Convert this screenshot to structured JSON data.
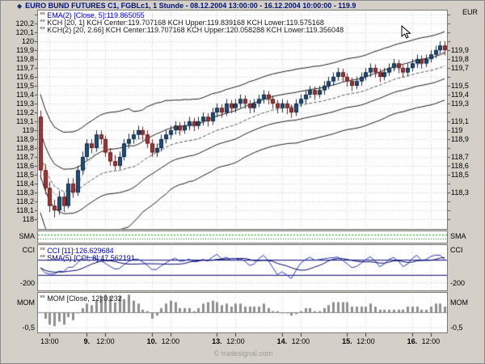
{
  "header": {
    "icon": "◆",
    "title": "EURO BUND FUTURES C1, FGBLc1, 1 Stunde - 08.12.2004 13:00:00 - 16.12.2004 10:00:00 - 119.9",
    "unit": "EUR"
  },
  "price_pane": {
    "legends": [
      {
        "icon": "××",
        "text": "EMA(2) [Close, 5]:119.865055"
      },
      {
        "icon": "××",
        "text": "KCH [20, 1] KCH Center:119.707168 KCH Upper:119.839168 KCH Lower:119.575168"
      },
      {
        "icon": "××",
        "text": "KCH(2) [20, 2.66] KCH Center:119.707168 KCH Upper:120.058288 KCH Lower:119.356048"
      }
    ],
    "axis_left": [
      "120,2",
      "120,1",
      "120",
      "119,9",
      "119,8",
      "119,7",
      "119,6",
      "119,5",
      "119,4",
      "119,3",
      "119,2",
      "119,1",
      "119",
      "118,9",
      "118,8",
      "118,7",
      "118,6",
      "118,5",
      "118,4",
      "118,3",
      "118,2",
      "118,1",
      "118"
    ],
    "axis_right": [
      "119,9",
      "119,8",
      "119,7",
      "119,5",
      "119,4",
      "119,3",
      "119,1",
      "119",
      "118,9",
      "118,7",
      "118,6",
      "118,5",
      "118,3"
    ]
  },
  "sma_pane": {
    "label": "SMA"
  },
  "cci_pane": {
    "label": "CCI",
    "legends": [
      {
        "icon": "××",
        "text": "CCI [11]:126.629684"
      },
      {
        "icon": "××",
        "text": "SMA(5) [CCI, 8]:47.562191"
      }
    ],
    "axis_label": "-200"
  },
  "mom_pane": {
    "label": "MOM",
    "legends": [
      {
        "icon": "××",
        "text": "MOM [Close, 12]:0.232"
      }
    ],
    "axis_label": "-0,5"
  },
  "time_axis": {
    "ticks": [
      {
        "label": "13:00",
        "bar": 2,
        "bold": false
      },
      {
        "label": "9.",
        "bar": 10,
        "bold": true
      },
      {
        "label": "12:00",
        "bar": 14,
        "bold": false
      },
      {
        "label": "10.",
        "bar": 24,
        "bold": true
      },
      {
        "label": "12:00",
        "bar": 28,
        "bold": false
      },
      {
        "label": "13.",
        "bar": 38,
        "bold": true
      },
      {
        "label": "12:00",
        "bar": 42,
        "bold": false
      },
      {
        "label": "14.",
        "bar": 52,
        "bold": true
      },
      {
        "label": "12:00",
        "bar": 56,
        "bold": false
      },
      {
        "label": "15.",
        "bar": 66,
        "bold": true
      },
      {
        "label": "12:00",
        "bar": 70,
        "bold": false
      },
      {
        "label": "16.",
        "bar": 80,
        "bold": true
      },
      {
        "label": "12:00",
        "bar": 84,
        "bold": false
      }
    ]
  },
  "footer": {
    "copyright": "© tradesignal.com"
  },
  "chart_data": {
    "type": "candlestick",
    "title": "EURO BUND FUTURES C1, FGBLc1, 1 Stunde",
    "date_range": "08.12.2004 13:00:00 - 16.12.2004 10:00:00",
    "interval": "1 Stunde",
    "last_price": 119.9,
    "unit": "EUR",
    "y_axis": {
      "min": 118.0,
      "max": 120.2,
      "step": 0.1
    },
    "candles": [
      [
        119.15,
        119.22,
        118.45,
        118.55
      ],
      [
        118.55,
        118.62,
        118.28,
        118.35
      ],
      [
        118.35,
        118.42,
        118.08,
        118.15
      ],
      [
        118.15,
        118.22,
        118.02,
        118.1
      ],
      [
        118.1,
        118.32,
        118.05,
        118.25
      ],
      [
        118.25,
        118.3,
        118.08,
        118.15
      ],
      [
        118.15,
        118.46,
        118.12,
        118.4
      ],
      [
        118.4,
        118.46,
        118.24,
        118.3
      ],
      [
        118.3,
        118.6,
        118.26,
        118.55
      ],
      [
        118.55,
        118.76,
        118.5,
        118.7
      ],
      [
        118.7,
        118.9,
        118.66,
        118.85
      ],
      [
        118.85,
        118.9,
        118.74,
        118.8
      ],
      [
        118.8,
        119.0,
        118.76,
        118.95
      ],
      [
        118.95,
        119.0,
        118.84,
        118.9
      ],
      [
        118.9,
        118.94,
        118.7,
        118.75
      ],
      [
        118.75,
        118.8,
        118.6,
        118.65
      ],
      [
        118.65,
        118.72,
        118.55,
        118.6
      ],
      [
        118.6,
        118.76,
        118.56,
        118.7
      ],
      [
        118.7,
        118.9,
        118.66,
        118.85
      ],
      [
        118.85,
        118.96,
        118.8,
        118.9
      ],
      [
        118.9,
        119.0,
        118.85,
        118.95
      ],
      [
        118.95,
        119.05,
        118.9,
        119.0
      ],
      [
        119.0,
        119.04,
        118.88,
        118.95
      ],
      [
        118.95,
        119.0,
        118.8,
        118.85
      ],
      [
        118.85,
        118.9,
        118.7,
        118.75
      ],
      [
        118.75,
        118.85,
        118.7,
        118.8
      ],
      [
        118.8,
        118.95,
        118.76,
        118.9
      ],
      [
        118.9,
        119.0,
        118.85,
        118.95
      ],
      [
        118.95,
        119.05,
        118.9,
        119.0
      ],
      [
        119.0,
        119.1,
        118.95,
        119.05
      ],
      [
        119.05,
        119.09,
        118.94,
        119.0
      ],
      [
        119.0,
        119.1,
        118.96,
        119.05
      ],
      [
        119.05,
        119.15,
        119.0,
        119.1
      ],
      [
        119.1,
        119.14,
        118.99,
        119.05
      ],
      [
        119.05,
        119.15,
        119.01,
        119.1
      ],
      [
        119.1,
        119.2,
        119.05,
        119.15
      ],
      [
        119.15,
        119.19,
        119.04,
        119.1
      ],
      [
        119.1,
        119.25,
        119.06,
        119.2
      ],
      [
        119.2,
        119.3,
        119.15,
        119.25
      ],
      [
        119.25,
        119.29,
        119.14,
        119.2
      ],
      [
        119.2,
        119.35,
        119.16,
        119.3
      ],
      [
        119.3,
        119.34,
        119.19,
        119.25
      ],
      [
        119.25,
        119.35,
        119.2,
        119.3
      ],
      [
        119.3,
        119.4,
        119.25,
        119.35
      ],
      [
        119.35,
        119.39,
        119.24,
        119.3
      ],
      [
        119.3,
        119.34,
        119.19,
        119.25
      ],
      [
        119.25,
        119.35,
        119.2,
        119.3
      ],
      [
        119.3,
        119.4,
        119.26,
        119.35
      ],
      [
        119.35,
        119.45,
        119.3,
        119.4
      ],
      [
        119.4,
        119.44,
        119.29,
        119.35
      ],
      [
        119.35,
        119.39,
        119.24,
        119.3
      ],
      [
        119.3,
        119.34,
        119.19,
        119.25
      ],
      [
        119.25,
        119.35,
        119.2,
        119.3
      ],
      [
        119.3,
        119.34,
        119.18,
        119.25
      ],
      [
        119.25,
        119.29,
        119.14,
        119.2
      ],
      [
        119.2,
        119.35,
        119.16,
        119.3
      ],
      [
        119.3,
        119.4,
        119.26,
        119.35
      ],
      [
        119.35,
        119.45,
        119.3,
        119.4
      ],
      [
        119.4,
        119.5,
        119.36,
        119.45
      ],
      [
        119.45,
        119.49,
        119.34,
        119.4
      ],
      [
        119.4,
        119.5,
        119.36,
        119.45
      ],
      [
        119.45,
        119.55,
        119.4,
        119.5
      ],
      [
        119.5,
        119.6,
        119.46,
        119.55
      ],
      [
        119.55,
        119.65,
        119.5,
        119.6
      ],
      [
        119.6,
        119.7,
        119.56,
        119.65
      ],
      [
        119.65,
        119.69,
        119.54,
        119.6
      ],
      [
        119.6,
        119.64,
        119.49,
        119.55
      ],
      [
        119.55,
        119.59,
        119.44,
        119.5
      ],
      [
        119.5,
        119.6,
        119.46,
        119.55
      ],
      [
        119.55,
        119.65,
        119.5,
        119.6
      ],
      [
        119.6,
        119.7,
        119.56,
        119.65
      ],
      [
        119.65,
        119.75,
        119.6,
        119.7
      ],
      [
        119.7,
        119.74,
        119.59,
        119.65
      ],
      [
        119.65,
        119.69,
        119.54,
        119.6
      ],
      [
        119.6,
        119.7,
        119.56,
        119.65
      ],
      [
        119.65,
        119.75,
        119.61,
        119.7
      ],
      [
        119.7,
        119.8,
        119.66,
        119.75
      ],
      [
        119.75,
        119.79,
        119.64,
        119.7
      ],
      [
        119.7,
        119.74,
        119.59,
        119.65
      ],
      [
        119.65,
        119.75,
        119.61,
        119.7
      ],
      [
        119.7,
        119.8,
        119.66,
        119.75
      ],
      [
        119.75,
        119.85,
        119.7,
        119.8
      ],
      [
        119.8,
        119.84,
        119.69,
        119.75
      ],
      [
        119.75,
        119.85,
        119.71,
        119.8
      ],
      [
        119.8,
        119.9,
        119.76,
        119.85
      ],
      [
        119.85,
        119.95,
        119.81,
        119.9
      ],
      [
        119.9,
        120.0,
        119.86,
        119.95
      ],
      [
        119.95,
        120.0,
        119.84,
        119.9
      ]
    ],
    "indicators": [
      {
        "name": "EMA",
        "params": "[Close, 5]",
        "value": 119.865055,
        "pane": "price",
        "style": "dashed"
      },
      {
        "name": "KCH",
        "params": "[20, 1]",
        "center": 119.707168,
        "upper": 119.839168,
        "lower": 119.575168,
        "pane": "price"
      },
      {
        "name": "KCH(2)",
        "params": "[20, 2.66]",
        "center": 119.707168,
        "upper": 120.058288,
        "lower": 119.356048,
        "pane": "price"
      },
      {
        "name": "CCI",
        "params": "[11]",
        "value": 126.629684,
        "pane": "cci"
      },
      {
        "name": "SMA",
        "params": "[CCI, 8]",
        "value": 47.562191,
        "pane": "cci"
      },
      {
        "name": "MOM",
        "params": "[Close, 12]",
        "pane": "mom"
      }
    ],
    "cci_panel": {
      "hlines": [
        100,
        -100
      ],
      "labeled_line": -200
    },
    "mom_panel": {
      "labeled_line": -0.5
    },
    "colors": {
      "up": "#1f4e79",
      "down": "#a23535",
      "wick": "#13283f",
      "channel": "#1a1a1a",
      "ema": "#9aa0b4",
      "cci": "#2233bb",
      "cci_sma": "#000066",
      "mom_bar": "#8f8f8f",
      "grid": "#cccccc",
      "sma1": "#00a000",
      "sma2": "#005500"
    }
  }
}
